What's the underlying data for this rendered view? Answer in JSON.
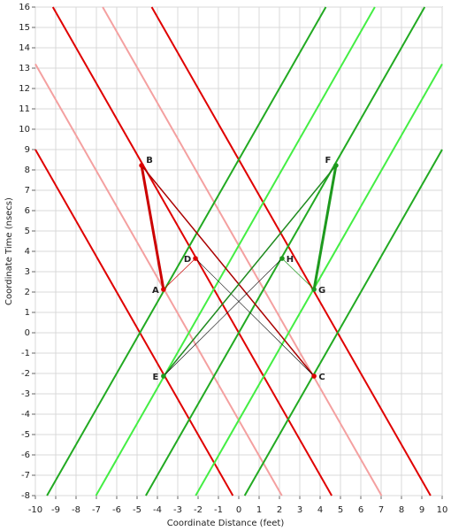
{
  "chart_data": {
    "type": "line",
    "x_label": "Coordinate Distance (feet)",
    "y_label": "Coordinate Time (nsecs)",
    "xlim": [
      -10,
      10
    ],
    "ylim": [
      -8,
      16
    ],
    "xticks": [
      -10,
      -9,
      -8,
      -7,
      -6,
      -5,
      -4,
      -3,
      -2,
      -1,
      0,
      1,
      2,
      3,
      4,
      5,
      6,
      7,
      8,
      9,
      10
    ],
    "yticks": [
      -8,
      -7,
      -6,
      -5,
      -4,
      -3,
      -2,
      -1,
      0,
      1,
      2,
      3,
      4,
      5,
      6,
      7,
      8,
      9,
      10,
      11,
      12,
      13,
      14,
      15,
      16
    ],
    "grid": true,
    "series": [
      {
        "color": "#f4a0a0",
        "width": 2,
        "x": [
          -10,
          2.12
        ],
        "values": [
          13.2,
          -8
        ]
      },
      {
        "color": "#f4a0a0",
        "width": 2,
        "x": [
          -6.69,
          7.02
        ],
        "values": [
          16,
          -8
        ]
      },
      {
        "color": "#e00000",
        "width": 2,
        "x": [
          -10,
          -0.29
        ],
        "values": [
          9,
          -8
        ]
      },
      {
        "color": "#e00000",
        "width": 2,
        "x": [
          -9.14,
          4.57
        ],
        "values": [
          16,
          -8
        ]
      },
      {
        "color": "#e00000",
        "width": 2,
        "x": [
          -4.28,
          9.43
        ],
        "values": [
          16,
          -8
        ]
      },
      {
        "color": "#44ee44",
        "width": 2,
        "x": [
          -7.02,
          6.69
        ],
        "values": [
          -8,
          16
        ]
      },
      {
        "color": "#44ee44",
        "width": 2,
        "x": [
          -2.12,
          10
        ],
        "values": [
          -8,
          13.2
        ]
      },
      {
        "color": "#22aa22",
        "width": 2,
        "x": [
          -9.43,
          4.28
        ],
        "values": [
          -8,
          16
        ]
      },
      {
        "color": "#22aa22",
        "width": 2,
        "x": [
          -4.57,
          9.14
        ],
        "values": [
          -8,
          16
        ]
      },
      {
        "color": "#22aa22",
        "width": 2,
        "x": [
          0.29,
          10
        ],
        "values": [
          -8,
          9
        ]
      },
      {
        "color": "#cc0000",
        "width": 3,
        "x": [
          -3.7,
          -4.78
        ],
        "values": [
          2.13,
          8.22
        ]
      },
      {
        "color": "#aa0000",
        "width": 1.5,
        "x": [
          -4.78,
          3.7
        ],
        "values": [
          8.22,
          -2.13
        ]
      },
      {
        "color": "#cc0000",
        "width": 0.7,
        "x": [
          -3.7,
          -2.13
        ],
        "values": [
          2.13,
          3.65
        ]
      },
      {
        "color": "#000000",
        "width": 0.6,
        "x": [
          -2.13,
          3.7
        ],
        "values": [
          3.65,
          -2.13
        ]
      },
      {
        "color": "#1e9a1e",
        "width": 3,
        "x": [
          3.7,
          4.78
        ],
        "values": [
          2.13,
          8.22
        ]
      },
      {
        "color": "#1e8a1e",
        "width": 1.5,
        "x": [
          -3.7,
          4.78
        ],
        "values": [
          -2.13,
          8.22
        ]
      },
      {
        "color": "#1e9a1e",
        "width": 0.7,
        "x": [
          3.7,
          2.13
        ],
        "values": [
          2.13,
          3.65
        ]
      },
      {
        "color": "#000000",
        "width": 0.6,
        "x": [
          -3.7,
          2.13
        ],
        "values": [
          -2.13,
          3.65
        ]
      }
    ],
    "points": [
      {
        "label": "A",
        "x": -3.7,
        "y": 2.13,
        "color": "#dd0000"
      },
      {
        "label": "B",
        "x": -4.78,
        "y": 8.22,
        "color": "#dd0000"
      },
      {
        "label": "C",
        "x": 3.7,
        "y": -2.13,
        "color": "#dd0000"
      },
      {
        "label": "D",
        "x": -2.13,
        "y": 3.65,
        "color": "#dd0000"
      },
      {
        "label": "E",
        "x": -3.7,
        "y": -2.13,
        "color": "#1e9a1e"
      },
      {
        "label": "F",
        "x": 4.78,
        "y": 8.22,
        "color": "#1e9a1e"
      },
      {
        "label": "G",
        "x": 3.7,
        "y": 2.13,
        "color": "#1e9a1e"
      },
      {
        "label": "H",
        "x": 2.13,
        "y": 3.65,
        "color": "#1e9a1e"
      }
    ]
  }
}
